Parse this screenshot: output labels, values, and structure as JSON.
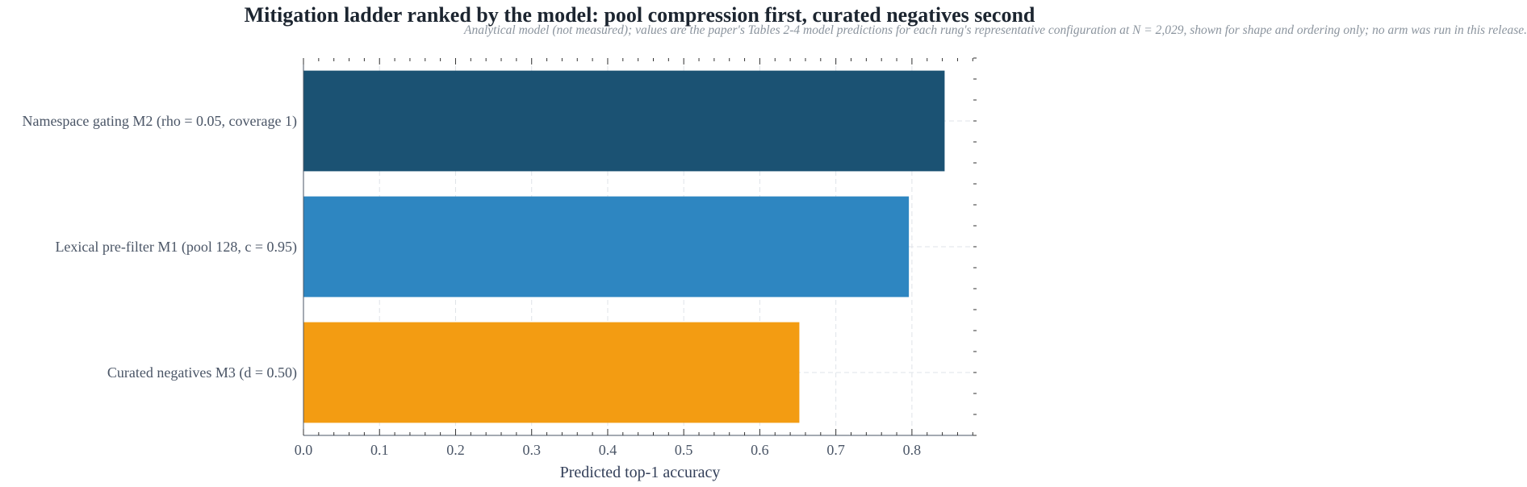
{
  "chart_data": {
    "type": "bar",
    "orientation": "horizontal",
    "title": "Mitigation ladder ranked by the model: pool compression first, curated negatives second",
    "subtitle": "Analytical model (not measured); values are the paper's Tables 2-4 model predictions for each rung's representative configuration at N = 2,029, shown for shape and ordering only; no arm was run in this release.",
    "xlabel": "Predicted top-1 accuracy",
    "ylabel": "",
    "xlim": [
      0,
      0.885
    ],
    "xticks": [
      "0.0",
      "0.1",
      "0.2",
      "0.3",
      "0.4",
      "0.5",
      "0.6",
      "0.7",
      "0.8"
    ],
    "categories": [
      "Namespace gating M2 (rho = 0.05, coverage 1)",
      "Lexical pre-filter M1 (pool 128, c = 0.95)",
      "Curated negatives M3 (d = 0.50)"
    ],
    "values": [
      0.843,
      0.796,
      0.652
    ],
    "colors": [
      "#1b5273",
      "#2e86c1",
      "#f39c12"
    ],
    "grid": true,
    "legend": "none"
  }
}
